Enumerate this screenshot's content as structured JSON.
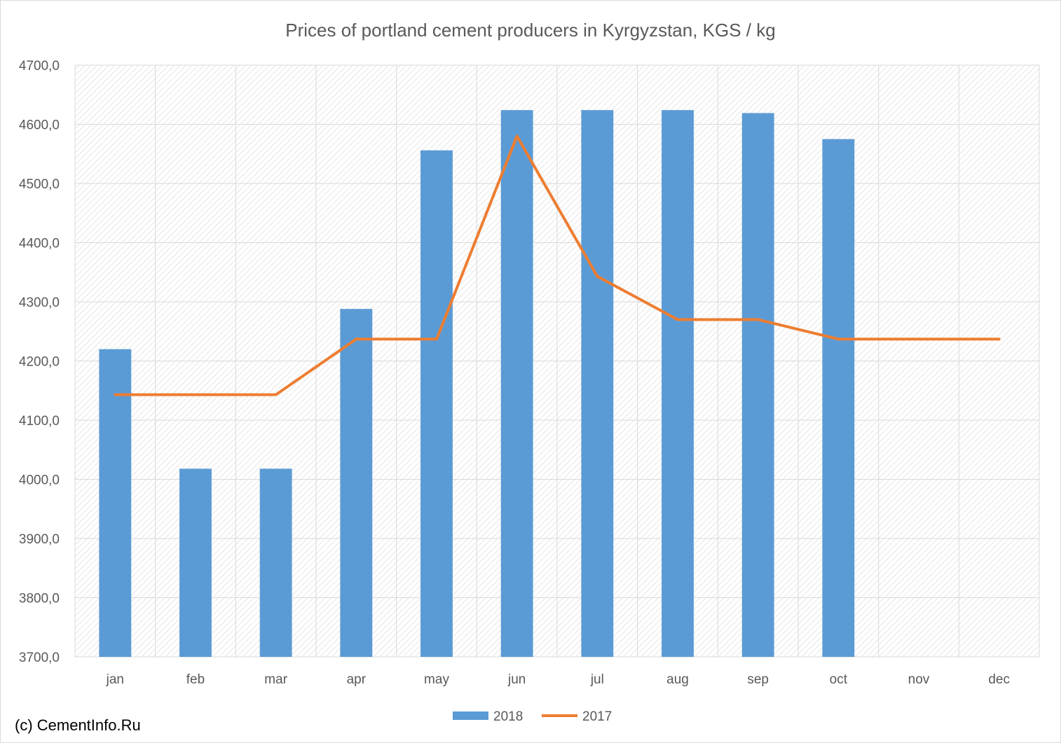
{
  "chart_data": {
    "type": "bar",
    "title": "Prices of portland cement producers in Kyrgyzstan, KGS / kg",
    "categories": [
      "jan",
      "feb",
      "mar",
      "apr",
      "may",
      "jun",
      "jul",
      "aug",
      "sep",
      "oct",
      "nov",
      "dec"
    ],
    "series": [
      {
        "name": "2018",
        "type": "bar",
        "color": "#5b9bd5",
        "values": [
          4220,
          4018,
          4018,
          4288,
          4556,
          4624,
          4624,
          4624,
          4619,
          4575,
          null,
          null
        ]
      },
      {
        "name": "2017",
        "type": "line",
        "color": "#ed7d31",
        "values": [
          4143,
          4143,
          4143,
          4237,
          4237,
          4580,
          4343,
          4270,
          4270,
          4237,
          4237,
          4237
        ]
      }
    ],
    "ylim": [
      3700,
      4700
    ],
    "yticks": [
      3700,
      3800,
      3900,
      4000,
      4100,
      4200,
      4300,
      4400,
      4500,
      4600,
      4700
    ],
    "ytick_labels": [
      "3700,0",
      "3800,0",
      "3900,0",
      "4000,0",
      "4100,0",
      "4200,0",
      "4300,0",
      "4400,0",
      "4500,0",
      "4600,0",
      "4700,0"
    ],
    "xlabel": "",
    "ylabel": "",
    "grid": true,
    "legend": "bottom"
  },
  "credit": "(c) CementInfo.Ru"
}
